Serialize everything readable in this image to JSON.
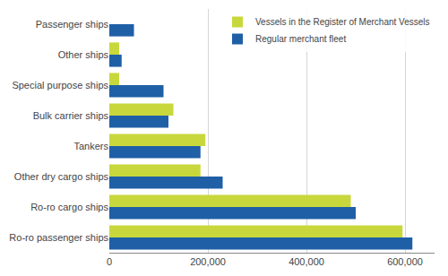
{
  "chart_data": {
    "type": "bar",
    "orientation": "horizontal",
    "categories": [
      "Ro-ro passenger ships",
      "Ro-ro cargo ships",
      "Other dry cargo ships",
      "Tankers",
      "Bulk carrier ships",
      "Special purpose ships",
      "Other ships",
      "Passenger ships"
    ],
    "series": [
      {
        "name": "Vessels in the Register of Merchant Vessels",
        "color": "#c8d83c",
        "values": [
          595000,
          490000,
          185000,
          195000,
          130000,
          20000,
          20000,
          0
        ]
      },
      {
        "name": "Regular merchant fleet",
        "color": "#1f5fa6",
        "values": [
          615000,
          500000,
          230000,
          185000,
          120000,
          110000,
          25000,
          50000
        ]
      }
    ],
    "xlim": [
      0,
      660000
    ],
    "xticks": [
      0,
      {
        "value": 200000,
        "label": "200,000"
      },
      {
        "value": 400000,
        "label": "400,000"
      },
      {
        "value": 600000,
        "label": "600,000"
      }
    ],
    "grid": true,
    "legend": "upper right"
  }
}
